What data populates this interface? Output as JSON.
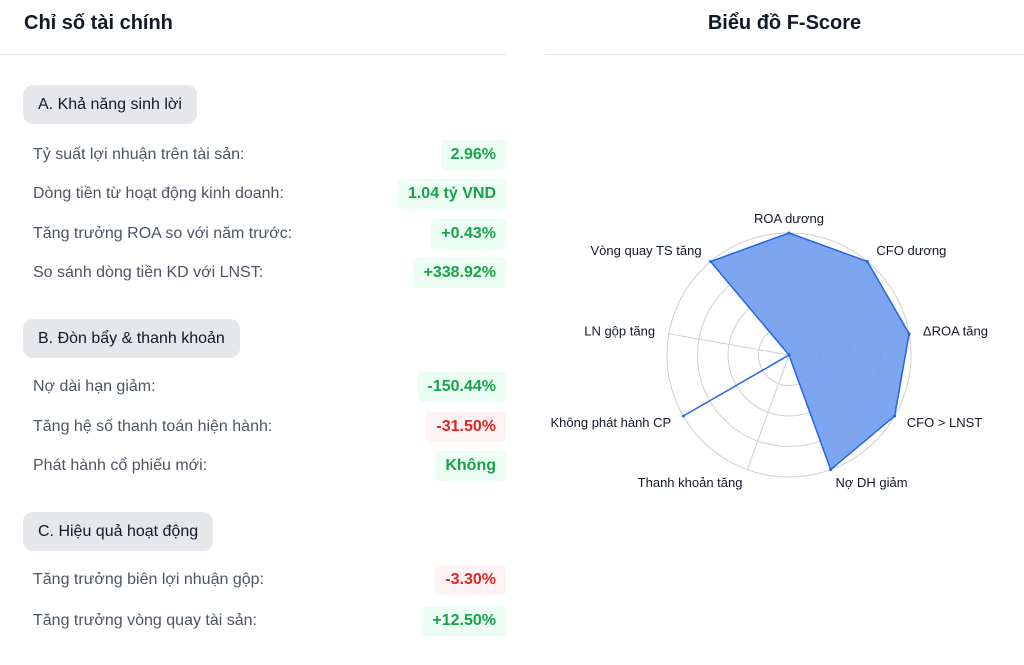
{
  "left_panel": {
    "title": "Chỉ số tài chính",
    "sections": [
      {
        "label": "A. Khả năng sinh lời",
        "rows": [
          {
            "label": "Tỷ suất lợi nhuận trên tài sản:",
            "value": "2.96%",
            "status": "positive"
          },
          {
            "label": "Dòng tiền từ hoạt động kinh doanh:",
            "value": "1.04 tỷ VND",
            "status": "positive"
          },
          {
            "label": "Tăng trưởng ROA so với năm trước:",
            "value": "+0.43%",
            "status": "positive"
          },
          {
            "label": "So sánh dòng tiền KD với LNST:",
            "value": "+338.92%",
            "status": "positive"
          }
        ]
      },
      {
        "label": "B. Đòn bẩy & thanh khoản",
        "rows": [
          {
            "label": "Nợ dài hạn giảm:",
            "value": "-150.44%",
            "status": "positive"
          },
          {
            "label": "Tăng hệ số thanh toán hiện hành:",
            "value": "-31.50%",
            "status": "negative"
          },
          {
            "label": "Phát hành cổ phiếu mới:",
            "value": "Không",
            "status": "positive"
          }
        ]
      },
      {
        "label": "C. Hiệu quả hoạt động",
        "rows": [
          {
            "label": "Tăng trưởng biên lợi nhuận gộp:",
            "value": "-3.30%",
            "status": "negative"
          },
          {
            "label": "Tăng trưởng vòng quay tài sản:",
            "value": "+12.50%",
            "status": "positive"
          }
        ]
      }
    ]
  },
  "right_panel": {
    "title": "Biểu đồ F-Score"
  },
  "colors": {
    "positive_text": "#16a34a",
    "positive_bg": "#ecfdf3",
    "negative_text": "#dc2626",
    "negative_bg": "#fef2f2",
    "radar_fill": "#6f9cf0",
    "radar_stroke": "#2563eb"
  },
  "chart_data": {
    "type": "radar",
    "axes": [
      "ROA dương",
      "CFO dương",
      "ΔROA tăng",
      "CFO > LNST",
      "Nợ DH giảm",
      "Thanh khoản tăng",
      "Không phát hành CP",
      "LN gộp tăng",
      "Vòng quay TS tăng"
    ],
    "values": [
      1,
      1,
      1,
      1,
      1,
      0,
      1,
      0,
      1
    ],
    "range": [
      0,
      1
    ],
    "rings": 4
  }
}
